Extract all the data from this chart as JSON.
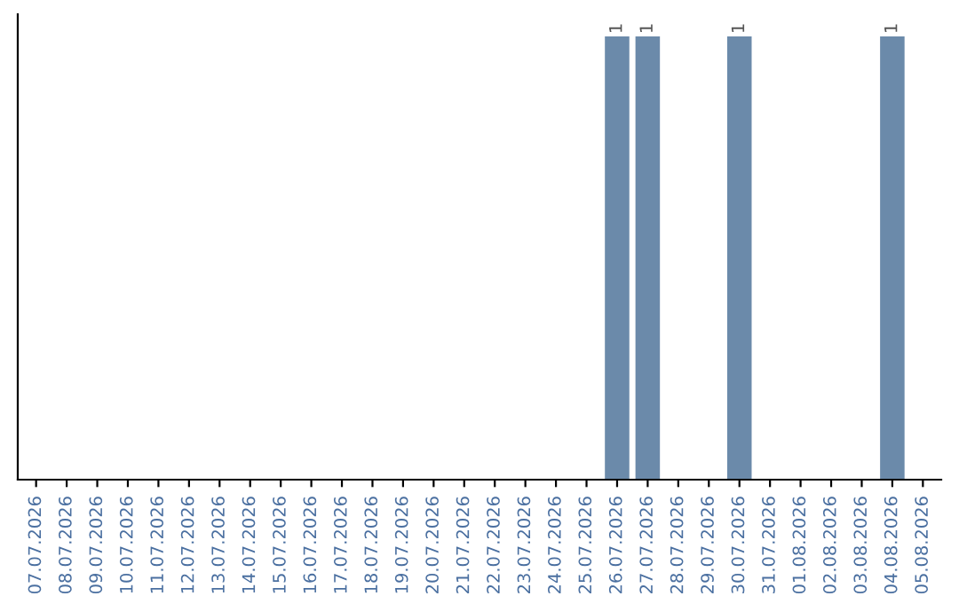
{
  "chart_data": {
    "type": "bar",
    "categories": [
      "07.07.2026",
      "08.07.2026",
      "09.07.2026",
      "10.07.2026",
      "11.07.2026",
      "12.07.2026",
      "13.07.2026",
      "14.07.2026",
      "15.07.2026",
      "16.07.2026",
      "17.07.2026",
      "18.07.2026",
      "19.07.2026",
      "20.07.2026",
      "21.07.2026",
      "22.07.2026",
      "23.07.2026",
      "24.07.2026",
      "25.07.2026",
      "26.07.2026",
      "27.07.2026",
      "28.07.2026",
      "29.07.2026",
      "30.07.2026",
      "31.07.2026",
      "01.08.2026",
      "02.08.2026",
      "03.08.2026",
      "04.08.2026",
      "05.08.2026"
    ],
    "values": [
      null,
      null,
      null,
      null,
      null,
      null,
      null,
      null,
      null,
      null,
      null,
      null,
      null,
      null,
      null,
      null,
      null,
      null,
      null,
      1,
      1,
      null,
      null,
      1,
      null,
      null,
      null,
      null,
      1,
      null
    ],
    "data_labels": true,
    "color": "#6b8aaa",
    "tick_labels": "x",
    "grid": false,
    "legend": false
  }
}
